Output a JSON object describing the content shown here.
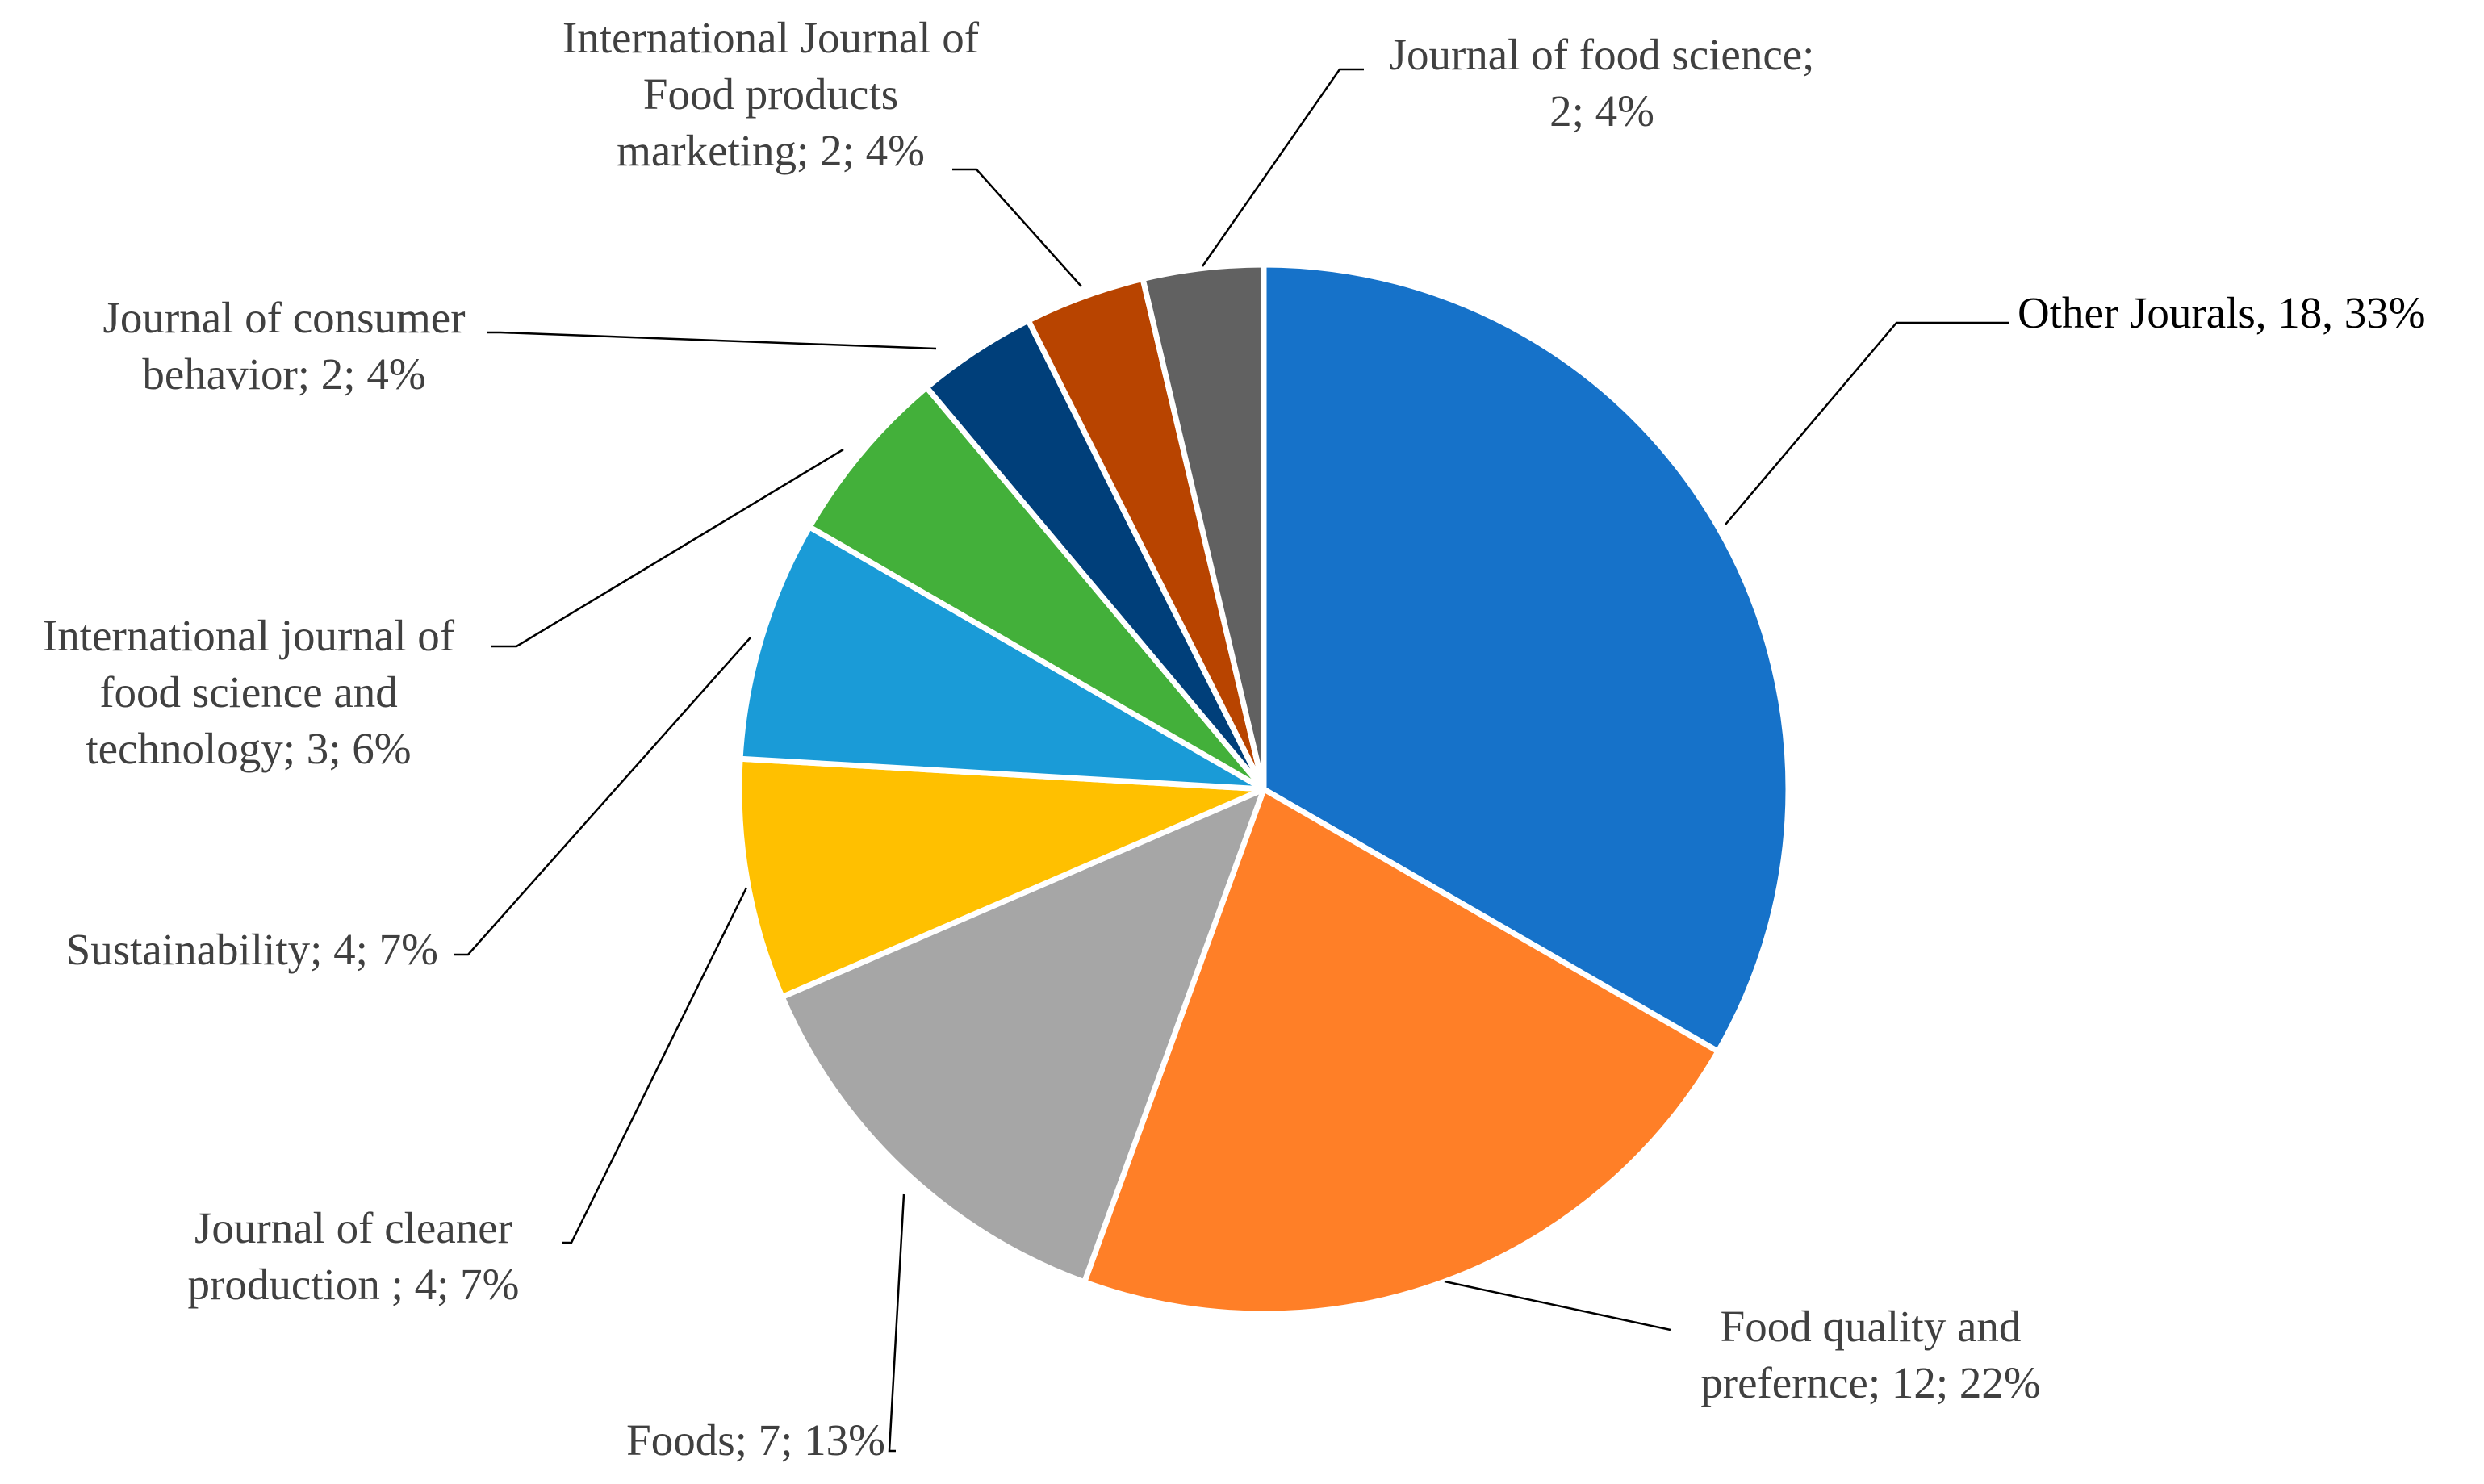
{
  "chart_data": {
    "type": "pie",
    "title": "",
    "slices": [
      {
        "name": "Other Jourals",
        "value": 18,
        "percent": "33%",
        "color": "#1672C9",
        "label": [
          "Other Jourals, 18, 33%"
        ]
      },
      {
        "name": "Food quality and prefernce",
        "value": 12,
        "percent": "22%",
        "color": "#FF7F27",
        "label": [
          "Food quality and",
          "prefernce; 12; 22%"
        ]
      },
      {
        "name": "Foods",
        "value": 7,
        "percent": "13%",
        "color": "#A6A6A6",
        "label": [
          "Foods; 7; 13%"
        ]
      },
      {
        "name": "Journal of cleaner production",
        "value": 4,
        "percent": "7%",
        "color": "#FFC000",
        "label": [
          "Journal of cleaner",
          "production ; 4; 7%"
        ]
      },
      {
        "name": "Sustainability",
        "value": 4,
        "percent": "7%",
        "color": "#1A9BD7",
        "label": [
          "Sustainability; 4; 7%"
        ]
      },
      {
        "name": "International journal of food science and technology",
        "value": 3,
        "percent": "6%",
        "color": "#43B03A",
        "label": [
          "International journal of",
          "food science and",
          "technology; 3; 6%"
        ]
      },
      {
        "name": "Journal of consumer behavior",
        "value": 2,
        "percent": "4%",
        "color": "#003F7A",
        "label": [
          "Journal of consumer",
          "behavior; 2; 4%"
        ]
      },
      {
        "name": "International Journal of Food products marketing",
        "value": 2,
        "percent": "4%",
        "color": "#B84400",
        "label": [
          "International Journal of",
          "Food products",
          "marketing; 2; 4%"
        ]
      },
      {
        "name": "Journal of food science",
        "value": 2,
        "percent": "4%",
        "color": "#616161",
        "label": [
          "Journal of food science;",
          "2; 4%"
        ]
      }
    ]
  }
}
